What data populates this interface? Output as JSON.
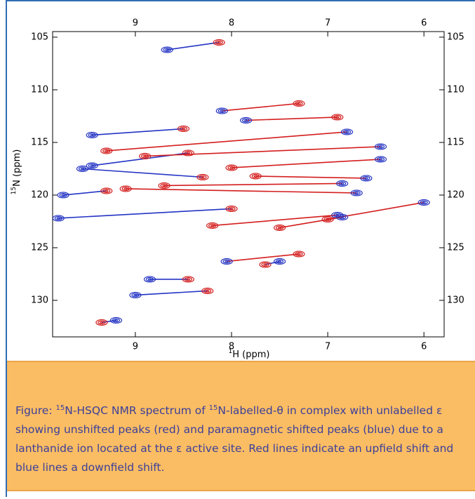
{
  "chart_data": {
    "type": "shift-map",
    "x_label": {
      "sup": "1",
      "text": "H  (ppm)"
    },
    "y_label": {
      "sup": "15",
      "text": "N (ppm)"
    },
    "xlim": [
      9.86,
      5.79
    ],
    "ylim": [
      104.47,
      133.47
    ],
    "xticks": [
      9,
      8,
      7,
      6
    ],
    "yticks": [
      105,
      110,
      115,
      120,
      125,
      130
    ],
    "peak_colors": [
      "#d41e1e",
      "#2434c4"
    ],
    "pairs": [
      {
        "color": "#2434c4",
        "x": [
          8.13,
          8.67
        ],
        "y": [
          105.5,
          106.2
        ]
      },
      {
        "color": "#d41e1e",
        "x": [
          7.3,
          8.1
        ],
        "y": [
          111.3,
          112.0
        ]
      },
      {
        "color": "#d41e1e",
        "x": [
          6.9,
          7.85
        ],
        "y": [
          112.6,
          112.9
        ]
      },
      {
        "color": "#2434c4",
        "x": [
          8.5,
          9.45
        ],
        "y": [
          113.7,
          114.3
        ]
      },
      {
        "color": "#d41e1e",
        "x": [
          9.3,
          6.8
        ],
        "y": [
          115.8,
          114.0
        ]
      },
      {
        "color": "#2434c4",
        "x": [
          8.45,
          9.45
        ],
        "y": [
          116.0,
          117.2
        ]
      },
      {
        "color": "#d41e1e",
        "x": [
          8.9,
          6.45
        ],
        "y": [
          116.3,
          115.4
        ]
      },
      {
        "color": "#d41e1e",
        "x": [
          8.0,
          6.45
        ],
        "y": [
          117.4,
          116.6
        ]
      },
      {
        "color": "#2434c4",
        "x": [
          8.3,
          9.55
        ],
        "y": [
          118.3,
          117.5
        ]
      },
      {
        "color": "#d41e1e",
        "x": [
          7.75,
          6.6
        ],
        "y": [
          118.2,
          118.4
        ]
      },
      {
        "color": "#2434c4",
        "x": [
          9.3,
          9.75
        ],
        "y": [
          119.6,
          120.0
        ]
      },
      {
        "color": "#d41e1e",
        "x": [
          8.7,
          6.85
        ],
        "y": [
          119.1,
          118.9
        ]
      },
      {
        "color": "#d41e1e",
        "x": [
          9.1,
          6.7
        ],
        "y": [
          119.4,
          119.8
        ]
      },
      {
        "color": "#2434c4",
        "x": [
          8.0,
          9.8
        ],
        "y": [
          121.3,
          122.2
        ]
      },
      {
        "color": "#d41e1e",
        "x": [
          7.0,
          6.0
        ],
        "y": [
          122.3,
          120.7
        ]
      },
      {
        "color": "#d41e1e",
        "x": [
          8.2,
          6.9
        ],
        "y": [
          122.9,
          121.9
        ]
      },
      {
        "color": "#d41e1e",
        "x": [
          7.5,
          6.85
        ],
        "y": [
          123.1,
          122.1
        ]
      },
      {
        "color": "#d41e1e",
        "x": [
          7.3,
          8.05
        ],
        "y": [
          125.6,
          126.3
        ]
      },
      {
        "color": "#2434c4",
        "x": [
          8.45,
          8.85
        ],
        "y": [
          128.0,
          128.0
        ]
      },
      {
        "color": "#2434c4",
        "x": [
          8.25,
          9.0
        ],
        "y": [
          129.1,
          129.5
        ]
      },
      {
        "color": "#2434c4",
        "x": [
          9.35,
          9.2
        ],
        "y": [
          132.1,
          131.9
        ]
      },
      {
        "color": "#2434c4",
        "x": [
          7.65,
          7.5
        ],
        "y": [
          126.6,
          126.3
        ]
      }
    ]
  },
  "caption": [
    {
      "text": "Figure: "
    },
    {
      "sup": "15"
    },
    {
      "text": "N-HSQC NMR spectrum of "
    },
    {
      "sup": "15"
    },
    {
      "text": "N-labelled-θ in complex with unlabelled ε showing unshifted peaks (red) and paramagnetic shifted peaks (blue) due to a lanthanide ion located at the ε active site. Red lines indicate an upfield shift and blue lines a downfield shift."
    }
  ]
}
